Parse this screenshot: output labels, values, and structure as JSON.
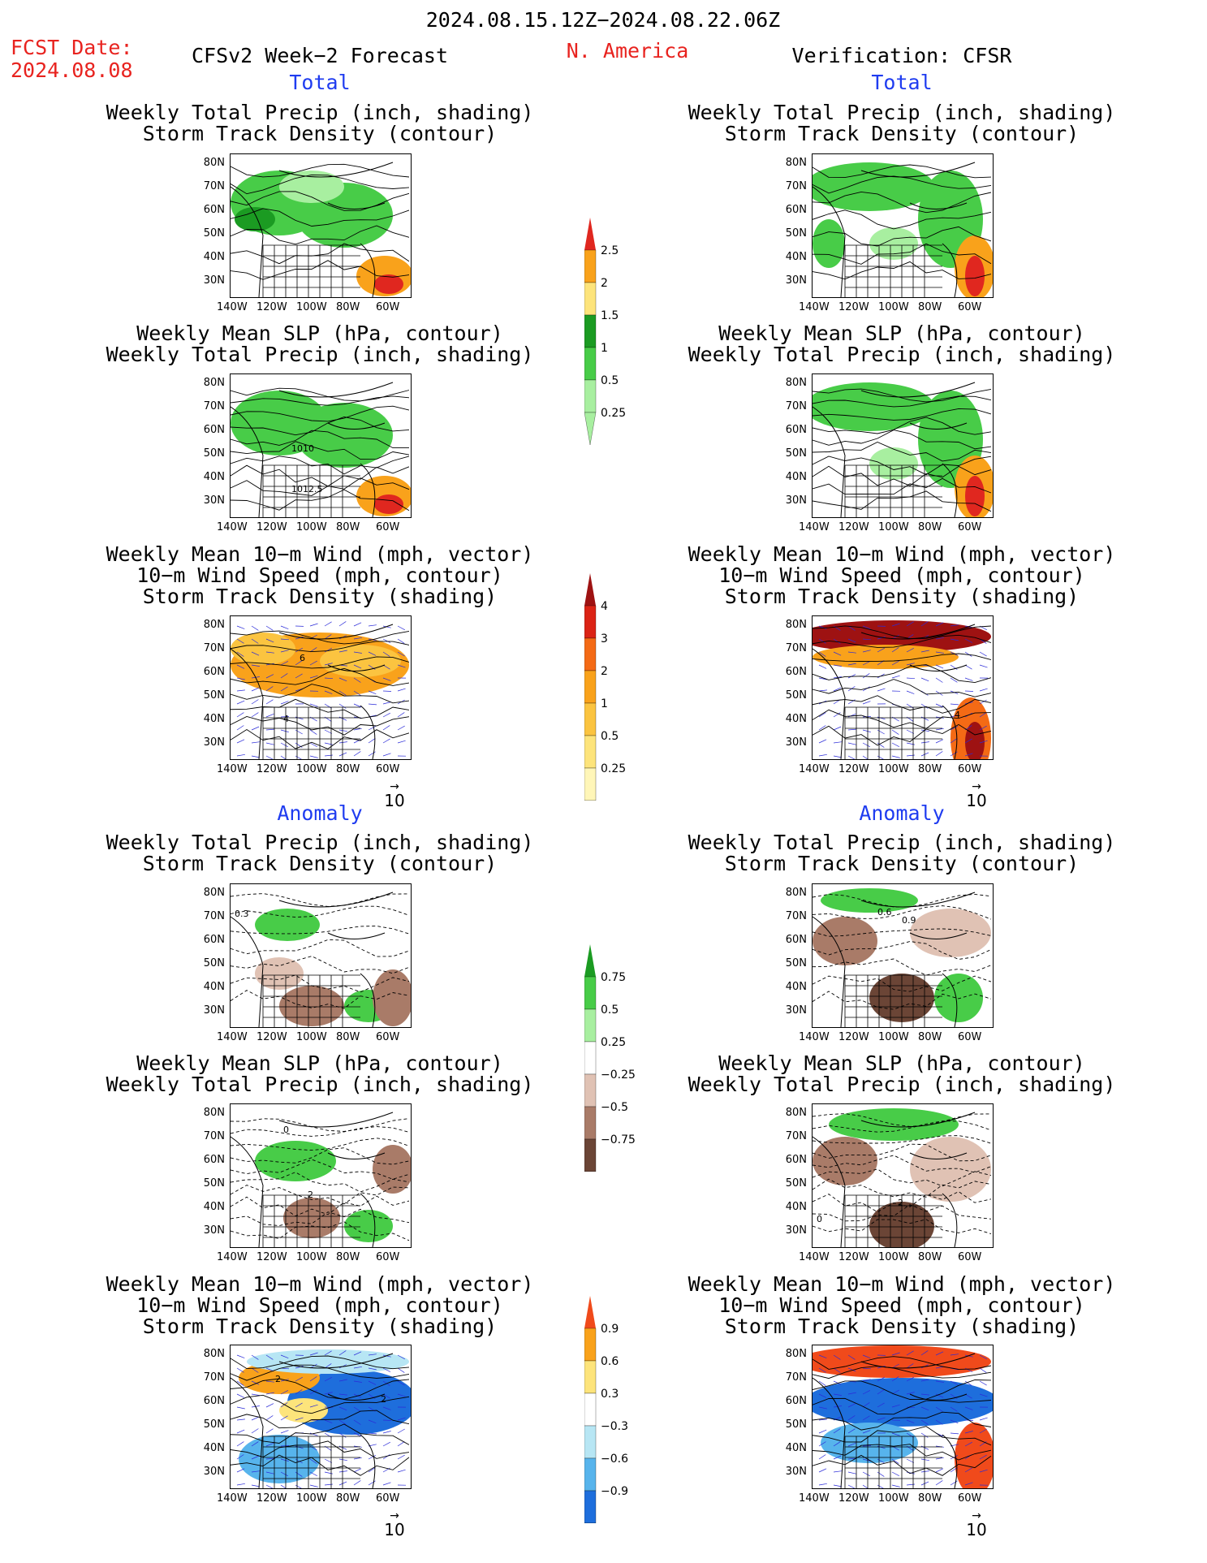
{
  "header": {
    "date_range": "2024.08.15.12Z−2024.08.22.06Z",
    "fcst_label": "FCST Date:",
    "fcst_date": "2024.08.08",
    "forecast_title": "CFSv2 Week−2 Forecast",
    "region": "N. America",
    "verification": "Verification: CFSR"
  },
  "sections": {
    "total": "Total",
    "anomaly": "Anomaly"
  },
  "panel_titles": {
    "precip_storm": [
      "Weekly Total Precip (inch, shading)",
      "Storm Track Density (contour)"
    ],
    "slp_precip": [
      "Weekly Mean SLP (hPa, contour)",
      "Weekly Total Precip (inch, shading)"
    ],
    "wind_storm": [
      "Weekly Mean 10−m Wind (mph, vector)",
      "10−m Wind Speed (mph, contour)",
      "Storm Track Density (shading)"
    ]
  },
  "axes": {
    "lat_ticks": [
      "80N",
      "70N",
      "60N",
      "50N",
      "40N",
      "30N"
    ],
    "lon_ticks": [
      "140W",
      "120W",
      "100W",
      "80W",
      "60W"
    ]
  },
  "vector_key": "10",
  "map_labels": {
    "slp_fc_a": "1010",
    "slp_fc_b": "1012.5",
    "wind_fc_total_a": "6",
    "wind_fc_total_b": "4",
    "wind_obs_total": "4",
    "anom_fc_precip": "0.3",
    "anom_obs_precip_a": "0.6",
    "anom_obs_precip_b": "0.9",
    "anom_fc_slp_a": "0",
    "anom_fc_slp_b": "2",
    "anom_obs_slp_a": "0",
    "anom_obs_slp_b": "2",
    "anom_fc_wind_a": "2",
    "anom_fc_wind_b": "2"
  },
  "colorbars": {
    "precip_total": {
      "labels": [
        "2.5",
        "2",
        "1.5",
        "1",
        "0.5",
        "0.25"
      ],
      "colors": [
        "#e0271f",
        "#f9a21b",
        "#fde47b",
        "#1b9b22",
        "#48cc48",
        "#a8efa0"
      ]
    },
    "storm_total": {
      "labels": [
        "4",
        "3",
        "2",
        "1",
        "0.5",
        "0.25"
      ],
      "colors": [
        "#9e1212",
        "#db2315",
        "#f46a15",
        "#f9a21b",
        "#fbc440",
        "#fde47b",
        "#fff6b8"
      ]
    },
    "precip_anom": {
      "labels": [
        "0.75",
        "0.5",
        "0.25",
        "−0.25",
        "−0.5",
        "−0.75"
      ],
      "colors": [
        "#1b9b22",
        "#48cc48",
        "#a8efa0",
        "#ffffff",
        "#e0c2b4",
        "#a97b68",
        "#6b4536"
      ]
    },
    "storm_anom": {
      "labels": [
        "0.9",
        "0.6",
        "0.3",
        "−0.3",
        "−0.6",
        "−0.9"
      ],
      "colors": [
        "#f04a1b",
        "#f9a21b",
        "#fde47b",
        "#ffffff",
        "#b7e6f4",
        "#57b4ec",
        "#1e6edc"
      ]
    }
  }
}
